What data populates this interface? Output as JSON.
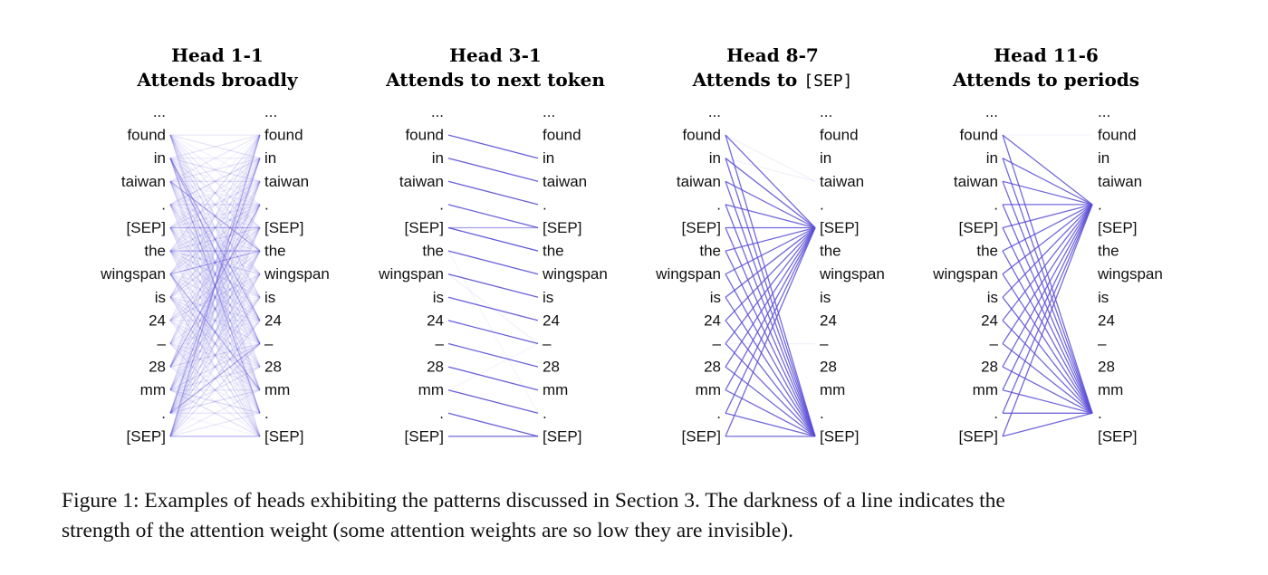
{
  "tokens": [
    "...",
    "found",
    "in",
    "taiwan",
    ".",
    "[SEP]",
    "the",
    "wingspan",
    "is",
    "24",
    "–",
    "28",
    "mm",
    ".",
    "[SEP]"
  ],
  "line_color": "#5a4fd6",
  "panels": [
    {
      "title": "Head 1-1",
      "subtitle_parts": [
        "Attends broadly"
      ],
      "pattern": "broad"
    },
    {
      "title": "Head 3-1",
      "subtitle_parts": [
        "Attends to next token"
      ],
      "pattern": "next-token"
    },
    {
      "title": "Head 8-7",
      "subtitle_parts": [
        "Attends to ",
        "[SEP]"
      ],
      "mono_part": 1,
      "pattern": "to-sep"
    },
    {
      "title": "Head 11-6",
      "subtitle_parts": [
        "Attends to periods"
      ],
      "pattern": "to-periods"
    }
  ],
  "caption": {
    "line1": "Figure 1: Examples of heads exhibiting the patterns discussed in Section 3. The darkness of a line indicates the",
    "line2": "strength of the attention weight (some attention weights are so low they are invisible)."
  }
}
